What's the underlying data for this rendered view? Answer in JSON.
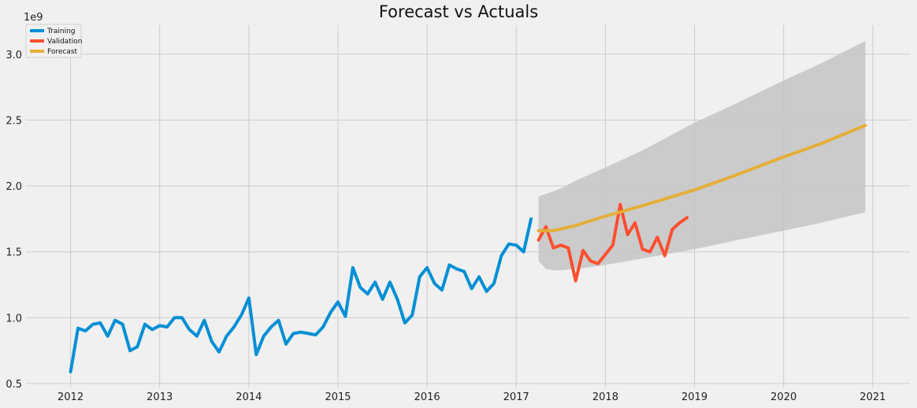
{
  "chart_data": {
    "type": "line",
    "title": "Forecast vs Actuals",
    "xlabel": "",
    "ylabel": "",
    "y_offset_label": "1e9",
    "x_ticks": [
      "2012",
      "2013",
      "2014",
      "2015",
      "2016",
      "2017",
      "2018",
      "2019",
      "2020",
      "2021"
    ],
    "y_ticks": [
      "0.5",
      "1.0",
      "1.5",
      "2.0",
      "2.5",
      "3.0"
    ],
    "xlim": [
      "2011-07",
      "2021-06"
    ],
    "ylim": [
      0.47,
      3.22
    ],
    "grid": true,
    "legend_position": "top-left",
    "colors": {
      "Training": "#008fd5",
      "Validation": "#fc4f30",
      "Forecast": "#e5ae38",
      "interval": "#c4c4c4",
      "background": "#f0f0f0",
      "grid": "#cbcbcb"
    },
    "series": [
      {
        "name": "Training",
        "x": [
          "2012-01",
          "2012-02",
          "2012-03",
          "2012-04",
          "2012-05",
          "2012-06",
          "2012-07",
          "2012-08",
          "2012-09",
          "2012-10",
          "2012-11",
          "2012-12",
          "2013-01",
          "2013-02",
          "2013-03",
          "2013-04",
          "2013-05",
          "2013-06",
          "2013-07",
          "2013-08",
          "2013-09",
          "2013-10",
          "2013-11",
          "2013-12",
          "2014-01",
          "2014-02",
          "2014-03",
          "2014-04",
          "2014-05",
          "2014-06",
          "2014-07",
          "2014-08",
          "2014-09",
          "2014-10",
          "2014-11",
          "2014-12",
          "2015-01",
          "2015-02",
          "2015-03",
          "2015-04",
          "2015-05",
          "2015-06",
          "2015-07",
          "2015-08",
          "2015-09",
          "2015-10",
          "2015-11",
          "2015-12",
          "2016-01",
          "2016-02",
          "2016-03",
          "2016-04",
          "2016-05",
          "2016-06",
          "2016-07",
          "2016-08",
          "2016-09",
          "2016-10",
          "2016-11",
          "2016-12",
          "2017-01",
          "2017-02",
          "2017-03"
        ],
        "values": [
          0.59,
          0.92,
          0.9,
          0.95,
          0.96,
          0.86,
          0.98,
          0.95,
          0.75,
          0.78,
          0.95,
          0.91,
          0.94,
          0.93,
          1.0,
          1.0,
          0.91,
          0.86,
          0.98,
          0.82,
          0.74,
          0.86,
          0.93,
          1.02,
          1.15,
          0.72,
          0.86,
          0.93,
          0.98,
          0.8,
          0.88,
          0.89,
          0.88,
          0.87,
          0.93,
          1.04,
          1.12,
          1.01,
          1.38,
          1.23,
          1.18,
          1.27,
          1.14,
          1.27,
          1.14,
          0.96,
          1.02,
          1.31,
          1.38,
          1.26,
          1.21,
          1.4,
          1.37,
          1.35,
          1.22,
          1.31,
          1.2,
          1.26,
          1.47,
          1.56,
          1.55,
          1.5,
          1.75
        ]
      },
      {
        "name": "Validation",
        "x": [
          "2017-04",
          "2017-05",
          "2017-06",
          "2017-07",
          "2017-08",
          "2017-09",
          "2017-10",
          "2017-11",
          "2017-12",
          "2018-01",
          "2018-02",
          "2018-03",
          "2018-04",
          "2018-05",
          "2018-06",
          "2018-07",
          "2018-08",
          "2018-09",
          "2018-10",
          "2018-11",
          "2018-12"
        ],
        "values": [
          1.59,
          1.69,
          1.53,
          1.55,
          1.53,
          1.28,
          1.51,
          1.43,
          1.41,
          1.48,
          1.55,
          1.86,
          1.63,
          1.72,
          1.52,
          1.5,
          1.61,
          1.47,
          1.67,
          1.72,
          1.76
        ]
      },
      {
        "name": "Forecast",
        "x": [
          "2017-04",
          "2017-05",
          "2017-06",
          "2017-09",
          "2018-01",
          "2018-06",
          "2019-01",
          "2019-06",
          "2020-01",
          "2020-06",
          "2020-12"
        ],
        "values": [
          1.66,
          1.66,
          1.66,
          1.7,
          1.77,
          1.85,
          1.97,
          2.07,
          2.22,
          2.32,
          2.46
        ]
      }
    ],
    "interval": {
      "x": [
        "2017-04",
        "2017-05",
        "2017-06",
        "2017-07",
        "2017-09",
        "2018-01",
        "2018-06",
        "2019-01",
        "2019-06",
        "2020-01",
        "2020-06",
        "2020-12"
      ],
      "upper": [
        1.92,
        1.94,
        1.96,
        1.98,
        2.04,
        2.14,
        2.27,
        2.48,
        2.61,
        2.8,
        2.93,
        3.1
      ],
      "lower": [
        1.43,
        1.37,
        1.36,
        1.36,
        1.37,
        1.4,
        1.45,
        1.52,
        1.58,
        1.66,
        1.72,
        1.8
      ]
    }
  }
}
